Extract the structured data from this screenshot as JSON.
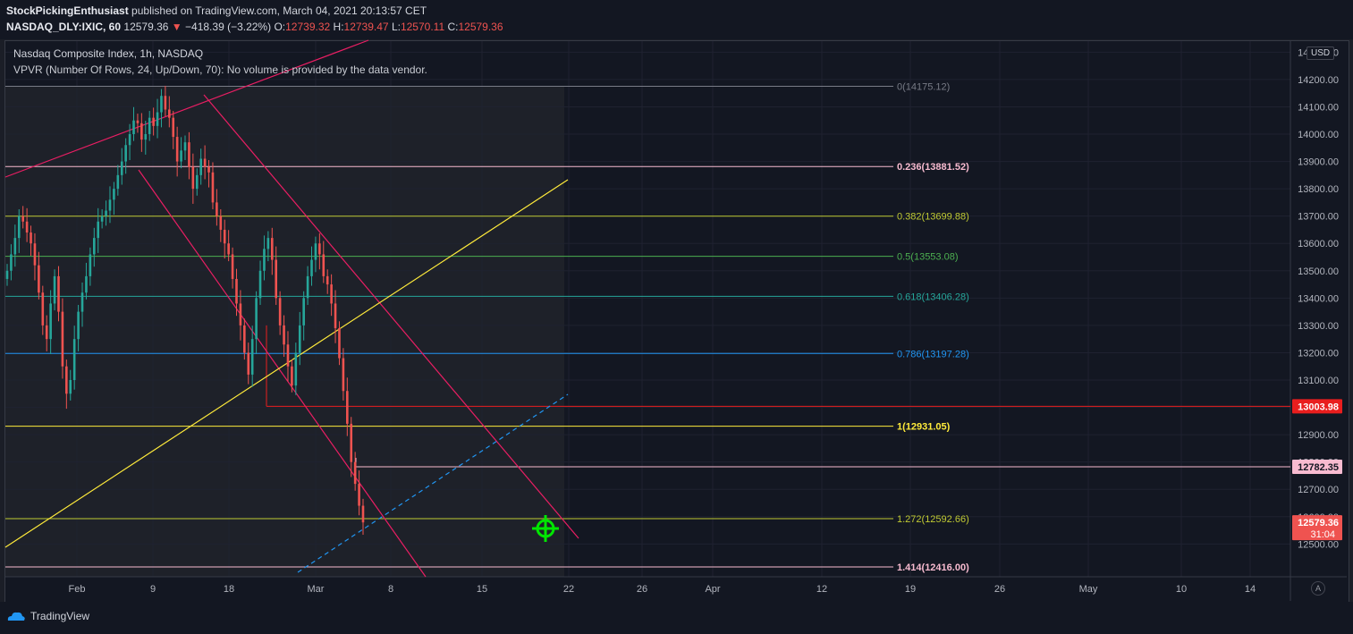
{
  "header": {
    "author": "StockPickingEnthusiast",
    "published": "published on TradingView.com, March 04, 2021 20:13:57 CET",
    "symbol": "NASDAQ_DLY:IXIC, 60",
    "last": "12579.36",
    "change": "−418.39 (−3.22%)",
    "o_label": "O:",
    "o": "12739.32",
    "h_label": "H:",
    "h": "12739.47",
    "l_label": "L:",
    "l": "12570.11",
    "c_label": "C:",
    "c": "12579.36"
  },
  "legend": {
    "title": "Nasdaq Composite Index, 1h, NASDAQ",
    "indicator": "VPVR (Number Of Rows, 24, Up/Down, 70): No volume is provided by the data vendor."
  },
  "currency": "USD",
  "auto_label": "A",
  "brand": "TradingView",
  "colors": {
    "up": "#26a69a",
    "down": "#ef5350",
    "channel": "#e91e63",
    "trend": "#ffeb3b",
    "background": "#131722",
    "grid": "#1f2230"
  },
  "chart_data": {
    "type": "candlestick",
    "ylim": [
      12400,
      14300
    ],
    "y_ticks": [
      "14300.00",
      "14200.00",
      "14100.00",
      "14000.00",
      "13900.00",
      "13800.00",
      "13700.00",
      "13600.00",
      "13500.00",
      "13400.00",
      "13300.00",
      "13200.00",
      "13100.00",
      "13000.00",
      "12900.00",
      "12800.00",
      "12700.00",
      "12600.00",
      "12500.00"
    ],
    "y_tick_values": [
      14300,
      14200,
      14100,
      14000,
      13900,
      13800,
      13700,
      13600,
      13500,
      13400,
      13300,
      13200,
      13100,
      13000,
      12900,
      12800,
      12700,
      12600,
      12500
    ],
    "x_ticks": [
      "Feb",
      "9",
      "18",
      "Mar",
      "8",
      "15",
      "22",
      "26",
      "Apr",
      "12",
      "19",
      "26",
      "May",
      "10",
      "14"
    ],
    "fib_levels": [
      {
        "label": "0(14175.12)",
        "value": 14175.12,
        "color": "#787b86"
      },
      {
        "label": "0.236(13881.52)",
        "value": 13881.52,
        "color": "#f8bbd0"
      },
      {
        "label": "0.382(13699.88)",
        "value": 13699.88,
        "color": "#c0ca33"
      },
      {
        "label": "0.5(13553.08)",
        "value": 13553.08,
        "color": "#4caf50"
      },
      {
        "label": "0.618(13406.28)",
        "value": 13406.28,
        "color": "#26a69a"
      },
      {
        "label": "0.786(13197.28)",
        "value": 13197.28,
        "color": "#2196f3"
      },
      {
        "label": "1(12931.05)",
        "value": 12931.05,
        "color": "#ffeb3b"
      },
      {
        "label": "1.272(12592.66)",
        "value": 12592.66,
        "color": "#c0ca33"
      },
      {
        "label": "1.414(12416.00)",
        "value": 12416.0,
        "color": "#f8bbd0"
      }
    ],
    "price_labels": [
      {
        "label": "13003.98",
        "value": 13003.98,
        "color": "#e91e1e",
        "text_color": "#ffffff"
      },
      {
        "label": "12782.35",
        "value": 12782.35,
        "color": "#f8bbd0",
        "text_color": "#131722"
      },
      {
        "label": "12579.36",
        "value": 12579.36,
        "color": "#ef5350",
        "text_color": "#ffffff",
        "sub": "31:04"
      }
    ],
    "closes": [
      13500,
      13560,
      13620,
      13700,
      13680,
      13640,
      13600,
      13520,
      13420,
      13300,
      13250,
      13380,
      13480,
      13350,
      13150,
      13050,
      13100,
      13250,
      13350,
      13420,
      13480,
      13560,
      13620,
      13680,
      13700,
      13720,
      13760,
      13800,
      13850,
      13900,
      13960,
      14000,
      14050,
      14040,
      13980,
      14000,
      14060,
      14030,
      14080,
      14140,
      14090,
      14060,
      13990,
      13900,
      13940,
      13970,
      13880,
      13800,
      13850,
      13910,
      13880,
      13860,
      13750,
      13700,
      13650,
      13600,
      13560,
      13470,
      13380,
      13300,
      13200,
      13120,
      13250,
      13400,
      13500,
      13580,
      13620,
      13540,
      13400,
      13300,
      13230,
      13150,
      13080,
      13200,
      13300,
      13400,
      13480,
      13540,
      13600,
      13560,
      13480,
      13450,
      13380,
      13290,
      13180,
      13060,
      12940,
      12800,
      12720,
      12640,
      12579
    ]
  }
}
